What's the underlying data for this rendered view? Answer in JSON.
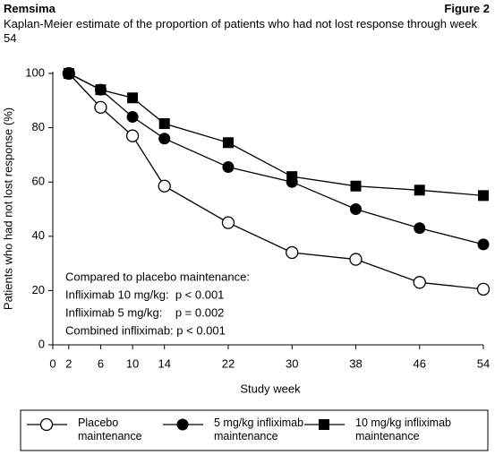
{
  "chart_data": {
    "type": "line",
    "product": "Remsima",
    "figure_label": "Figure 2",
    "title": "Kaplan-Meier estimate of the proportion of patients who had not lost response through week 54",
    "x_label": "Study week",
    "y_label": "Patients who had not lost response (%)",
    "x": [
      2,
      6,
      10,
      14,
      22,
      30,
      38,
      46,
      54
    ],
    "series": [
      {
        "name": "Placebo maintenance",
        "color": "#000000",
        "marker": "open-circle",
        "values": [
          100,
          87.5,
          77,
          58.5,
          45,
          34,
          31.5,
          23,
          20.5
        ]
      },
      {
        "name": "5 mg/kg infliximab maintenance",
        "color": "#000000",
        "marker": "filled-circle",
        "values": [
          100,
          94,
          84,
          76,
          65.5,
          60,
          50,
          43,
          37
        ]
      },
      {
        "name": "10 mg/kg infliximab maintenance",
        "color": "#000000",
        "marker": "filled-square",
        "values": [
          100,
          94,
          91,
          81.5,
          74.5,
          62,
          58.5,
          57,
          55
        ]
      }
    ],
    "annotations": [
      "Compared to placebo maintenance:",
      "Infliximab 10 mg/kg:  p < 0.001",
      "Infliximab 5 mg/kg:    p = 0.002",
      "Combined infliximab: p < 0.001"
    ],
    "xlim": [
      0,
      54
    ],
    "xticks": [
      0,
      2,
      6,
      10,
      14,
      22,
      30,
      38,
      46,
      54
    ],
    "ylim": [
      0,
      100
    ],
    "yticks": [
      0,
      20,
      40,
      60,
      80,
      100
    ],
    "grid": false
  }
}
